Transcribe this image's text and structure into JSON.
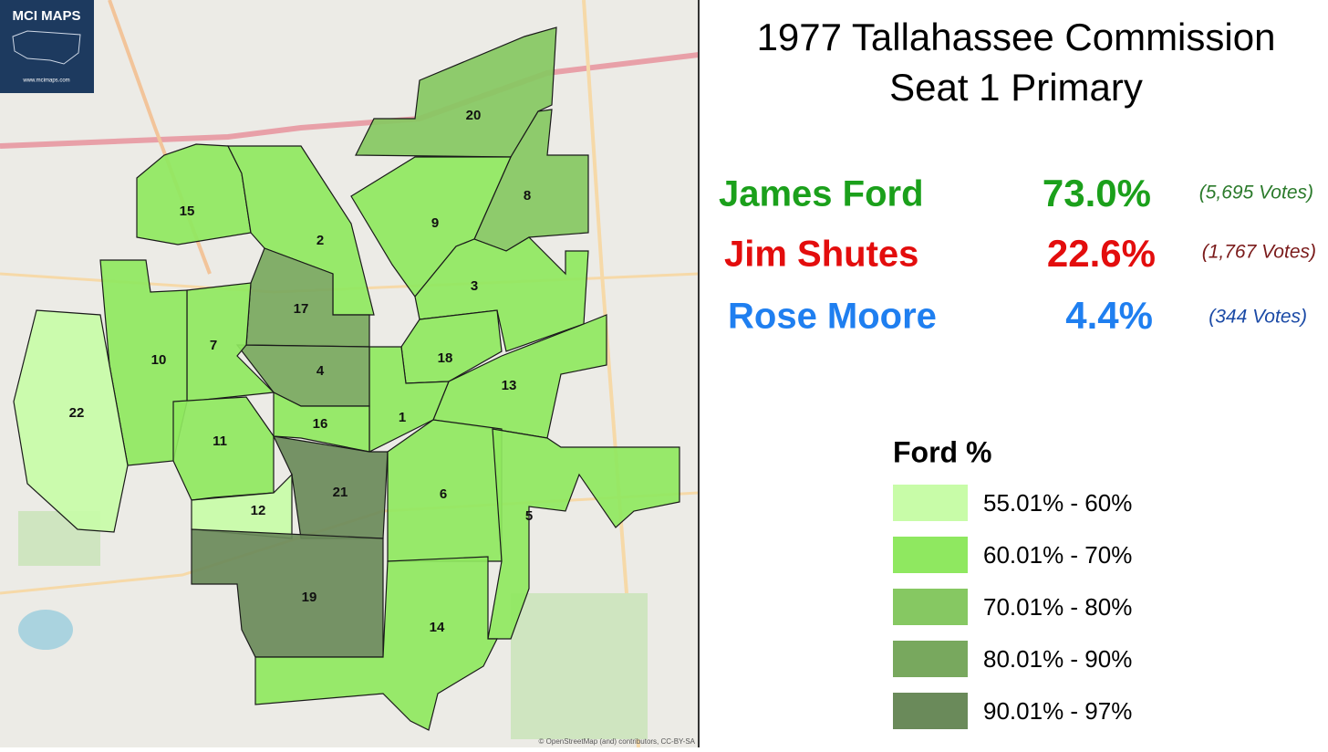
{
  "logo": {
    "title": "MCI MAPS",
    "url": "www.mcimaps.com"
  },
  "title_lines": [
    "1977 Tallahassee Commission",
    "Seat 1 Primary"
  ],
  "results": [
    {
      "name": "James Ford",
      "percent": "73.0%",
      "votes": "(5,695 Votes)",
      "color": "#1ba01b",
      "votes_color": "#2b7a2b"
    },
    {
      "name": "Jim Shutes",
      "percent": "22.6%",
      "votes": "(1,767 Votes)",
      "color": "#e30d0d",
      "votes_color": "#7a1a1a"
    },
    {
      "name": "Rose Moore",
      "percent": "4.4%",
      "votes": "(344 Votes)",
      "color": "#1f7ff0",
      "votes_color": "#1b4aa6"
    }
  ],
  "legend": {
    "title": "Ford %",
    "items": [
      {
        "label": "55.01% - 60%",
        "color": "#c8fca8"
      },
      {
        "label": "60.01% - 70%",
        "color": "#8fe860"
      },
      {
        "label": "70.01% - 80%",
        "color": "#86c862"
      },
      {
        "label": "80.01% - 90%",
        "color": "#78a85e"
      },
      {
        "label": "90.01% - 97%",
        "color": "#6a8a5a"
      }
    ]
  },
  "precincts": [
    "1",
    "2",
    "3",
    "4",
    "5",
    "6",
    "7",
    "8",
    "9",
    "10",
    "11",
    "12",
    "13",
    "14",
    "15",
    "16",
    "17",
    "18",
    "19",
    "20",
    "21",
    "22"
  ],
  "attribution": "© OpenStreetMap (and) contributors, CC-BY-SA"
}
